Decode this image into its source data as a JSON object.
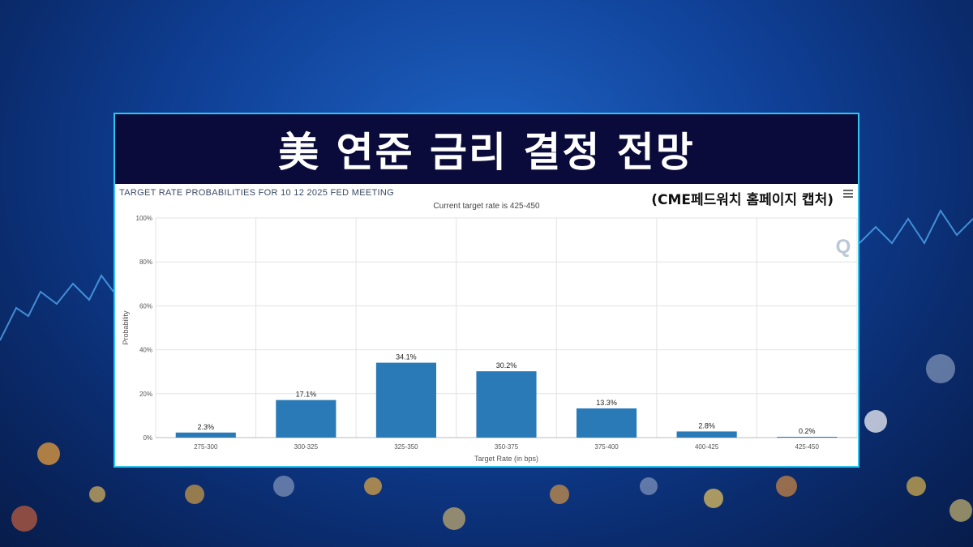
{
  "headline": "美 연준 금리 결정 전망",
  "source_note": "(CME페드워치 홈페이지 캡처)",
  "chart_data": {
    "type": "bar",
    "title": "TARGET RATE PROBABILITIES FOR 10 12 2025 FED MEETING",
    "subtitle": "Current target rate is 425-450",
    "xlabel": "Target Rate (in bps)",
    "ylabel": "Probability",
    "categories": [
      "275-300",
      "300-325",
      "325-350",
      "350-375",
      "375-400",
      "400-425",
      "425-450"
    ],
    "values": [
      2.3,
      17.1,
      34.1,
      30.2,
      13.3,
      2.8,
      0.2
    ],
    "data_labels": [
      "2.3%",
      "17.1%",
      "34.1%",
      "30.2%",
      "13.3%",
      "2.8%",
      "0.2%"
    ],
    "y_ticks": [
      "0%",
      "20%",
      "40%",
      "60%",
      "80%",
      "100%"
    ],
    "ylim": [
      0,
      100
    ],
    "grid": true,
    "bar_color": "#2a7ab8"
  },
  "watermark": "Q"
}
